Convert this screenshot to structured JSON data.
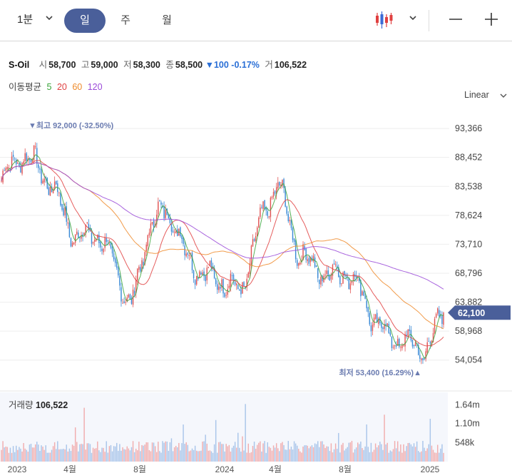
{
  "toolbar": {
    "interval": "1분",
    "periods": [
      "일",
      "주",
      "월"
    ],
    "active_period": "일"
  },
  "info": {
    "name": "S-Oil",
    "open_label": "시",
    "open": "58,700",
    "high_label": "고",
    "high": "59,000",
    "low_label": "저",
    "low": "58,300",
    "close_label": "종",
    "close": "58,500",
    "change": "▼100 -0.17%",
    "volume_label": "거",
    "volume": "106,522"
  },
  "ma": {
    "label": "이동평균",
    "periods": [
      {
        "value": "5",
        "color": "#3aa53a"
      },
      {
        "value": "20",
        "color": "#e04040"
      },
      {
        "value": "60",
        "color": "#ee8a2a"
      },
      {
        "value": "120",
        "color": "#9a4ad8"
      }
    ]
  },
  "scale_mode": "Linear",
  "colors": {
    "up": "#e05555",
    "down": "#3a8ad6",
    "accent": "#4a5f9a"
  },
  "chart_data": {
    "type": "candlestick",
    "ylim": [
      51600,
      95800
    ],
    "y_ticks": [
      {
        "value": 93366,
        "label": "93,366"
      },
      {
        "value": 88452,
        "label": "88,452"
      },
      {
        "value": 83538,
        "label": "83,538"
      },
      {
        "value": 78624,
        "label": "78,624"
      },
      {
        "value": 73710,
        "label": "73,710"
      },
      {
        "value": 68796,
        "label": "68,796"
      },
      {
        "value": 63882,
        "label": "63,882"
      },
      {
        "value": 58968,
        "label": "58,968"
      },
      {
        "value": 54054,
        "label": "54,054"
      }
    ],
    "current_price": {
      "value": 62100,
      "label": "62,100"
    },
    "max_annotation": {
      "value": 92000,
      "label": "▼최고 92,000 (-32.50%)"
    },
    "min_annotation": {
      "value": 53400,
      "label": "최저 53,400 (16.29%)▲"
    },
    "x_labels": [
      "2023",
      "4월",
      "8월",
      "2024",
      "4월",
      "8월",
      "2025"
    ],
    "close_path": [
      [
        "2023-01",
        84500
      ],
      [
        "2023-02",
        89000
      ],
      [
        "2023-03",
        87000
      ],
      [
        "2023-04",
        82000
      ],
      [
        "2023-05",
        74500
      ],
      [
        "2023-06",
        76000
      ],
      [
        "2023-07",
        71500
      ],
      [
        "2023-08",
        62500
      ],
      [
        "2023-09",
        76500
      ],
      [
        "2023-10",
        80000
      ],
      [
        "2023-11",
        72000
      ],
      [
        "2023-12",
        68500
      ],
      [
        "2024-01",
        67500
      ],
      [
        "2024-02",
        65500
      ],
      [
        "2024-03",
        77000
      ],
      [
        "2024-04",
        84500
      ],
      [
        "2024-05",
        73000
      ],
      [
        "2024-06",
        69500
      ],
      [
        "2024-07",
        68500
      ],
      [
        "2024-08",
        69000
      ],
      [
        "2024-09",
        62000
      ],
      [
        "2024-10",
        58000
      ],
      [
        "2024-11",
        57000
      ],
      [
        "2024-12",
        55500
      ],
      [
        "2025-01",
        62100
      ]
    ],
    "volume": {
      "title": "거래량",
      "value": "106,522",
      "y_ticks": [
        {
          "value": 1640000,
          "label": "1.64m"
        },
        {
          "value": 1100000,
          "label": "1.10m"
        },
        {
          "value": 548000,
          "label": "548k"
        }
      ],
      "ylim": [
        0,
        2000000
      ]
    }
  }
}
